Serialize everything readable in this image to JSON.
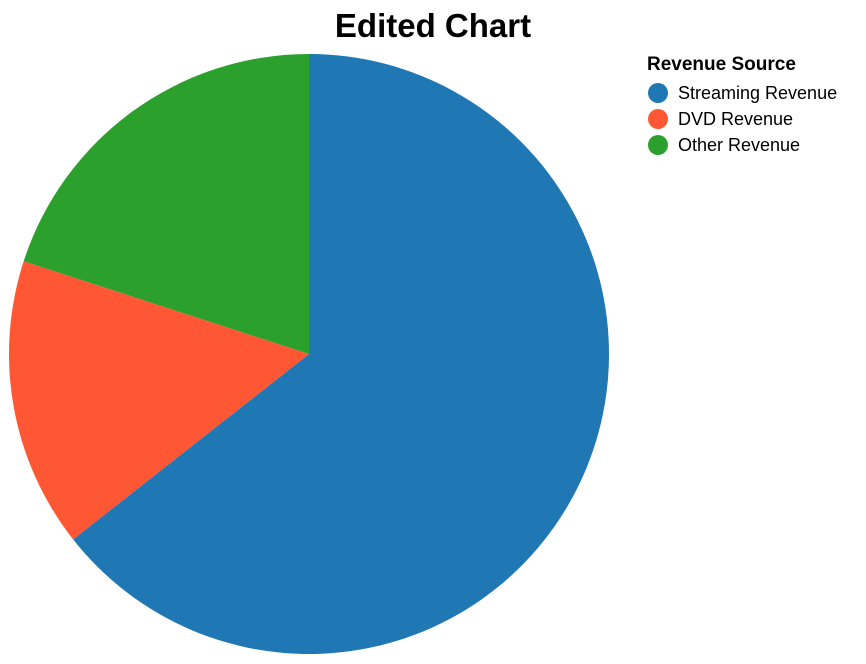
{
  "chart_data": {
    "type": "pie",
    "title": "Edited Chart",
    "legend_title": "Revenue Source",
    "legend_position": "top-right",
    "slices": [
      {
        "label": "Streaming Revenue",
        "value": 64.4,
        "color": "#1f77b4"
      },
      {
        "label": "DVD Revenue",
        "value": 15.6,
        "color": "#ff5733"
      },
      {
        "label": "Other Revenue",
        "value": 20.0,
        "color": "#2ca02c"
      }
    ]
  }
}
